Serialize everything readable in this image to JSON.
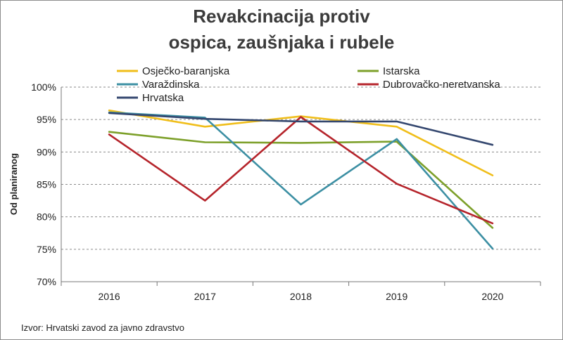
{
  "chart_data": {
    "type": "line",
    "title": "Revakcinacija protiv\nospica, zaušnjaka i rubele",
    "ylabel": "Od planiranog",
    "xlabel": "",
    "x": [
      "2016",
      "2017",
      "2018",
      "2019",
      "2020"
    ],
    "ylim": [
      70,
      100
    ],
    "yticks": [
      70,
      75,
      80,
      85,
      90,
      95,
      100
    ],
    "ytick_labels": [
      "70%",
      "75%",
      "80%",
      "85%",
      "90%",
      "95%",
      "100%"
    ],
    "grid": true,
    "legend_position": "top",
    "series": [
      {
        "name": "Osječko-baranjska",
        "color": "#f0be1a",
        "values": [
          96.4,
          93.9,
          95.5,
          93.9,
          86.4
        ]
      },
      {
        "name": "Istarska",
        "color": "#7da02a",
        "values": [
          93.1,
          91.5,
          91.4,
          91.6,
          78.3
        ]
      },
      {
        "name": "Varaždinska",
        "color": "#3c8fa3",
        "values": [
          96.1,
          95.3,
          81.9,
          92.0,
          75.1
        ]
      },
      {
        "name": "Dubrovačko-neretvanska",
        "color": "#b5242b",
        "values": [
          92.7,
          82.5,
          95.4,
          85.1,
          79.0
        ]
      },
      {
        "name": "Hrvatska",
        "color": "#34476f",
        "values": [
          96.0,
          95.1,
          94.7,
          94.7,
          91.1
        ]
      }
    ]
  },
  "source": "Izvor: Hrvatski zavod za javno zdravstvo"
}
